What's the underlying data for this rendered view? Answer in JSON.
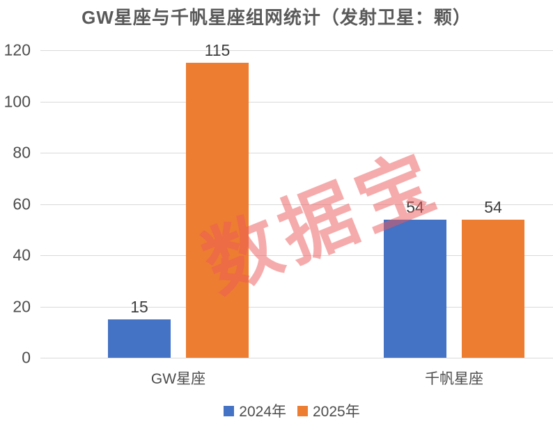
{
  "title": "GW星座与千帆星座组网统计（发射卫星：颗）",
  "watermark": {
    "text": "数据宝",
    "color": "#ED5A5A"
  },
  "chart_data": {
    "type": "bar",
    "title": "GW星座与千帆星座组网统计（发射卫星：颗）",
    "categories": [
      "GW星座",
      "千帆星座"
    ],
    "series": [
      {
        "name": "2024年",
        "color": "#4472C4",
        "values": [
          15,
          54
        ]
      },
      {
        "name": "2025年",
        "color": "#ED7D31",
        "values": [
          115,
          54
        ]
      }
    ],
    "yticks": [
      0,
      20,
      40,
      60,
      80,
      100,
      120
    ],
    "ylim": [
      0,
      120
    ],
    "xlabel": "",
    "ylabel": "",
    "grid": true,
    "legend_position": "bottom",
    "value_labels_shown": true
  }
}
